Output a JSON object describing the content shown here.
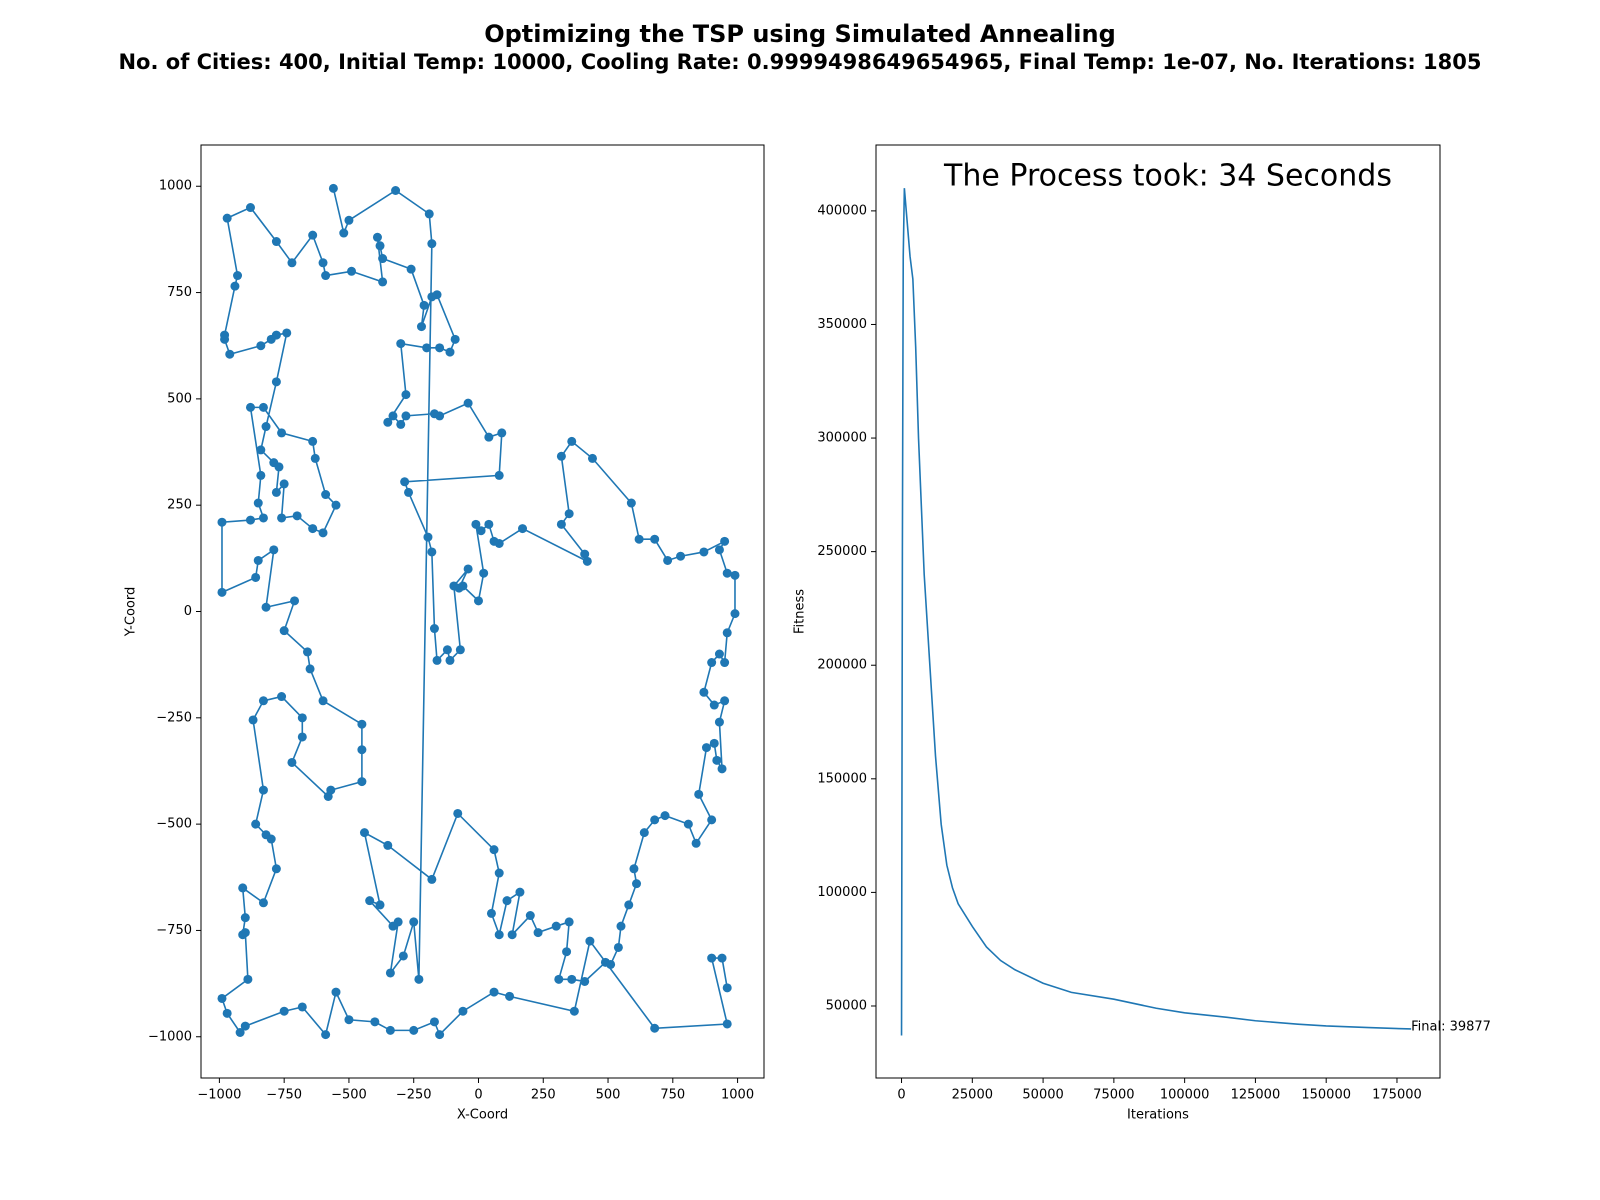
{
  "title": "Optimizing the TSP using Simulated Annealing",
  "subtitle": "No. of Cities: 400, Initial Temp: 10000, Cooling Rate: 0.9999498649654965, Final Temp: 1e-07, No. Iterations: 1805",
  "chart_data": [
    {
      "type": "line",
      "marker": true,
      "color": "#1f77b4",
      "xlabel": "X-Coord",
      "ylabel": "Y-Coord",
      "xlim": [
        -1071,
        1102
      ],
      "ylim": [
        -1097,
        1097
      ],
      "xticks": [
        {
          "value": -1000,
          "label": "−1000"
        },
        {
          "value": -750,
          "label": "−750"
        },
        {
          "value": -500,
          "label": "−500"
        },
        {
          "value": -250,
          "label": "−250"
        },
        0,
        250,
        500,
        750,
        1000
      ],
      "yticks": [
        {
          "value": -1000,
          "label": "−1000"
        },
        {
          "value": -750,
          "label": "−750"
        },
        {
          "value": -500,
          "label": "−500"
        },
        {
          "value": -250,
          "label": "−250"
        },
        0,
        250,
        500,
        750,
        1000
      ],
      "x": [
        -560,
        -520,
        -500,
        -320,
        -190,
        -180,
        -230,
        -250,
        -290,
        -340,
        -310,
        -330,
        -420,
        -380,
        -440,
        -350,
        -180,
        -80,
        60,
        80,
        50,
        80,
        110,
        160,
        130,
        200,
        230,
        300,
        350,
        340,
        310,
        360,
        410,
        490,
        510,
        540,
        550,
        580,
        610,
        600,
        640,
        680,
        720,
        810,
        840,
        900,
        850,
        880,
        910,
        920,
        940,
        930,
        950,
        910,
        870,
        900,
        930,
        950,
        960,
        990,
        990,
        960,
        930,
        950,
        870,
        780,
        730,
        680,
        620,
        590,
        440,
        360,
        320,
        350,
        320,
        410,
        420,
        170,
        80,
        60,
        40,
        10,
        -10,
        20,
        0,
        -60,
        -75,
        -40,
        -95,
        -70,
        -110,
        -120,
        -160,
        -170,
        -180,
        -195,
        -270,
        -285,
        80,
        90,
        40,
        -40,
        -150,
        -170,
        -280,
        -300,
        -330,
        -350,
        -280,
        -300,
        -200,
        -150,
        -110,
        -90,
        -160,
        -180,
        -220,
        -210,
        -260,
        -370,
        -380,
        -390,
        -370,
        -490,
        -590,
        -600,
        -640,
        -720,
        -780,
        -880,
        -970,
        -930,
        -940,
        -980,
        -980,
        -960,
        -840,
        -800,
        -780,
        -740,
        -780,
        -820,
        -840,
        -790,
        -770,
        -780,
        -750,
        -760,
        -700,
        -640,
        -600,
        -550,
        -590,
        -630,
        -640,
        -760,
        -830,
        -880,
        -840,
        -850,
        -830,
        -880,
        -990,
        -990,
        -860,
        -850,
        -790,
        -820,
        -710,
        -750,
        -660,
        -650,
        -600,
        -450,
        -450,
        -450,
        -570,
        -580,
        -720,
        -680,
        -680,
        -760,
        -830,
        -870,
        -830,
        -860,
        -820,
        -800,
        -780,
        -830,
        -910,
        -900,
        -910,
        -900,
        -890,
        -990,
        -970,
        -920,
        -900,
        -750,
        -680,
        -590,
        -550,
        -500,
        -400,
        -340,
        -250,
        -170,
        -150,
        -60,
        60,
        120,
        370,
        430,
        680,
        960,
        900,
        940,
        960
      ],
      "values": [
        995,
        890,
        920,
        990,
        935,
        865,
        -865,
        -730,
        -810,
        -850,
        -730,
        -740,
        -680,
        -690,
        -520,
        -550,
        -630,
        -475,
        -560,
        -615,
        -710,
        -760,
        -680,
        -660,
        -760,
        -715,
        -755,
        -740,
        -730,
        -800,
        -865,
        -865,
        -870,
        -825,
        -830,
        -790,
        -740,
        -690,
        -640,
        -605,
        -520,
        -490,
        -480,
        -500,
        -545,
        -490,
        -430,
        -320,
        -310,
        -350,
        -370,
        -260,
        -210,
        -220,
        -190,
        -120,
        -100,
        -120,
        -50,
        -5,
        85,
        90,
        145,
        165,
        140,
        130,
        120,
        170,
        170,
        255,
        360,
        400,
        365,
        230,
        205,
        135,
        118,
        195,
        160,
        165,
        205,
        190,
        205,
        90,
        25,
        60,
        55,
        100,
        60,
        -90,
        -115,
        -90,
        -115,
        -40,
        140,
        175,
        280,
        305,
        320,
        420,
        410,
        490,
        460,
        465,
        460,
        440,
        460,
        445,
        510,
        630,
        620,
        620,
        610,
        640,
        745,
        740,
        670,
        720,
        805,
        830,
        860,
        880,
        775,
        800,
        790,
        820,
        885,
        820,
        870,
        950,
        925,
        790,
        765,
        650,
        640,
        605,
        625,
        640,
        650,
        655,
        540,
        435,
        380,
        350,
        340,
        280,
        300,
        220,
        225,
        195,
        185,
        250,
        275,
        360,
        400,
        420,
        480,
        480,
        320,
        255,
        220,
        215,
        210,
        45,
        80,
        120,
        145,
        10,
        25,
        -45,
        -95,
        -135,
        -210,
        -265,
        -325,
        -400,
        -420,
        -435,
        -355,
        -295,
        -250,
        -200,
        -210,
        -255,
        -420,
        -500,
        -525,
        -535,
        -605,
        -685,
        -650,
        -720,
        -760,
        -755,
        -865,
        -910,
        -945,
        -990,
        -975,
        -940,
        -930,
        -995,
        -895,
        -960,
        -965,
        -985,
        -985,
        -965,
        -995,
        -940,
        -895,
        -905,
        -940,
        -775,
        -980,
        -970,
        -815,
        -815,
        -885
      ]
    },
    {
      "type": "line",
      "marker": false,
      "color": "#1f77b4",
      "xlabel": "Iterations",
      "ylabel": "Fitness",
      "annotations": [
        "The Process took: 34 Seconds",
        "Final: 39877"
      ],
      "xlim": [
        -9020,
        190200
      ],
      "ylim": [
        18300,
        429000
      ],
      "xticks": [
        0,
        25000,
        50000,
        75000,
        100000,
        125000,
        150000,
        175000
      ],
      "yticks": [
        50000,
        100000,
        150000,
        200000,
        250000,
        300000,
        350000,
        400000
      ],
      "x": [
        0,
        300,
        600,
        1000,
        2000,
        3000,
        4000,
        5000,
        6000,
        7000,
        8000,
        10000,
        12000,
        14000,
        16000,
        18000,
        20000,
        25000,
        30000,
        35000,
        40000,
        50000,
        60000,
        75000,
        90000,
        100000,
        115000,
        125000,
        140000,
        150000,
        165000,
        180000
      ],
      "values": [
        37000,
        250000,
        380000,
        410000,
        395000,
        380000,
        370000,
        340000,
        300000,
        270000,
        240000,
        200000,
        160000,
        130000,
        112000,
        102000,
        95000,
        85000,
        76000,
        70000,
        66000,
        60000,
        56000,
        53000,
        49000,
        47000,
        45000,
        43500,
        42000,
        41200,
        40500,
        39877
      ]
    }
  ]
}
